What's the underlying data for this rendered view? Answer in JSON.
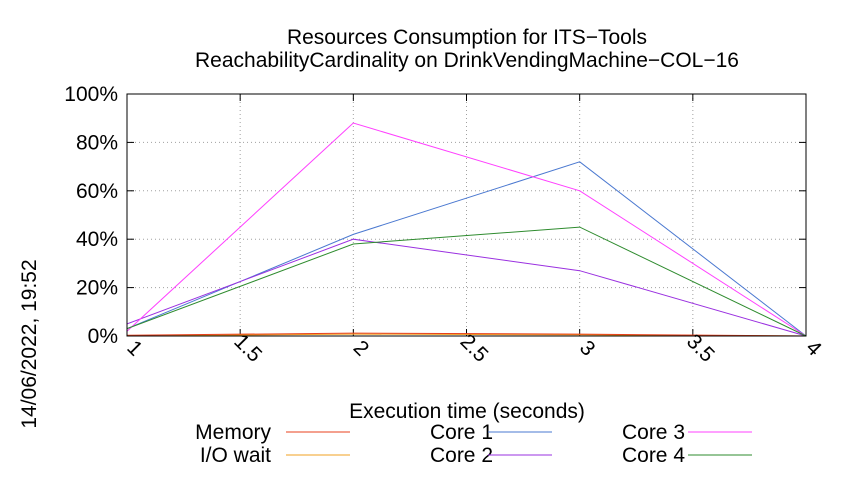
{
  "chart_data": {
    "type": "line",
    "title": "Resources Consumption for ITS−Tools",
    "subtitle": "ReachabilityCardinality on DrinkVendingMachine−COL−16",
    "xlabel": "Execution time (seconds)",
    "ylabel": "",
    "side_label": "14/06/2022, 19:52",
    "xlim": [
      1,
      4
    ],
    "ylim": [
      0,
      100
    ],
    "x_ticks": [
      1,
      1.5,
      2,
      2.5,
      3,
      3.5,
      4
    ],
    "x_tick_labels": [
      "1",
      "1.5",
      "2",
      "2.5",
      "3",
      "3.5",
      "4"
    ],
    "y_ticks": [
      0,
      20,
      40,
      60,
      80,
      100
    ],
    "y_tick_labels": [
      "0%",
      "20%",
      "40%",
      "60%",
      "80%",
      "100%"
    ],
    "grid": true,
    "legend_position": "bottom",
    "series": [
      {
        "name": "Memory",
        "color": "#e8401c",
        "x": [
          1,
          2,
          3,
          4
        ],
        "values": [
          0.3,
          1.2,
          0.8,
          0
        ]
      },
      {
        "name": "I/O wait",
        "color": "#f0a020",
        "x": [
          1,
          2,
          3,
          4
        ],
        "values": [
          0,
          0.8,
          0.5,
          0
        ]
      },
      {
        "name": "Core 1",
        "color": "#4a78d0",
        "x": [
          1,
          2,
          3,
          4
        ],
        "values": [
          3,
          42,
          72,
          0
        ]
      },
      {
        "name": "Core 2",
        "color": "#9a30e0",
        "x": [
          1,
          2,
          3,
          4
        ],
        "values": [
          5,
          40,
          27,
          0
        ]
      },
      {
        "name": "Core 3",
        "color": "#ff40ff",
        "x": [
          1,
          2,
          3,
          4
        ],
        "values": [
          2,
          88,
          60,
          0
        ]
      },
      {
        "name": "Core 4",
        "color": "#2e8b2e",
        "x": [
          1,
          2,
          3,
          4
        ],
        "values": [
          3,
          38,
          45,
          0
        ]
      }
    ]
  }
}
